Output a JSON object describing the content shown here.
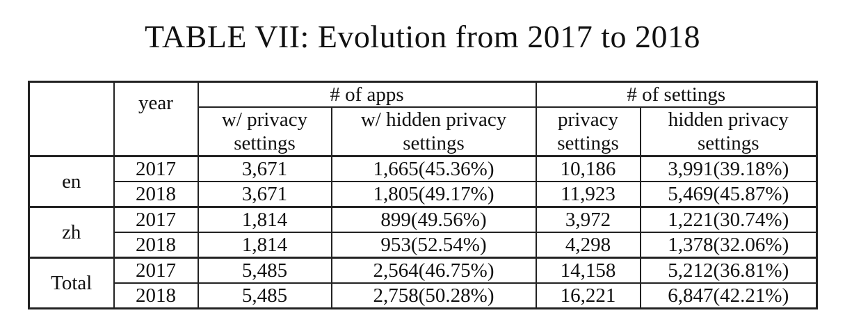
{
  "caption": "TABLE VII: Evolution from 2017 to 2018",
  "header": {
    "year": "year",
    "apps_group": "# of apps",
    "settings_group": "# of settings",
    "columns": [
      {
        "line1": "w/ privacy",
        "line2": "settings"
      },
      {
        "line1": "w/ hidden privacy",
        "line2": "settings"
      },
      {
        "line1": "privacy",
        "line2": "settings"
      },
      {
        "line1": "hidden privacy",
        "line2": "settings"
      }
    ]
  },
  "groups": [
    {
      "label": "en",
      "rows": [
        {
          "year": "2017",
          "cells": [
            "3,671",
            "1,665(45.36%)",
            "10,186",
            "3,991(39.18%)"
          ]
        },
        {
          "year": "2018",
          "cells": [
            "3,671",
            "1,805(49.17%)",
            "11,923",
            "5,469(45.87%)"
          ]
        }
      ]
    },
    {
      "label": "zh",
      "rows": [
        {
          "year": "2017",
          "cells": [
            "1,814",
            "899(49.56%)",
            "3,972",
            "1,221(30.74%)"
          ]
        },
        {
          "year": "2018",
          "cells": [
            "1,814",
            "953(52.54%)",
            "4,298",
            "1,378(32.06%)"
          ]
        }
      ]
    },
    {
      "label": "Total",
      "rows": [
        {
          "year": "2017",
          "cells": [
            "5,485",
            "2,564(46.75%)",
            "14,158",
            "5,212(36.81%)"
          ]
        },
        {
          "year": "2018",
          "cells": [
            "5,485",
            "2,758(50.28%)",
            "16,221",
            "6,847(42.21%)"
          ]
        }
      ]
    }
  ]
}
